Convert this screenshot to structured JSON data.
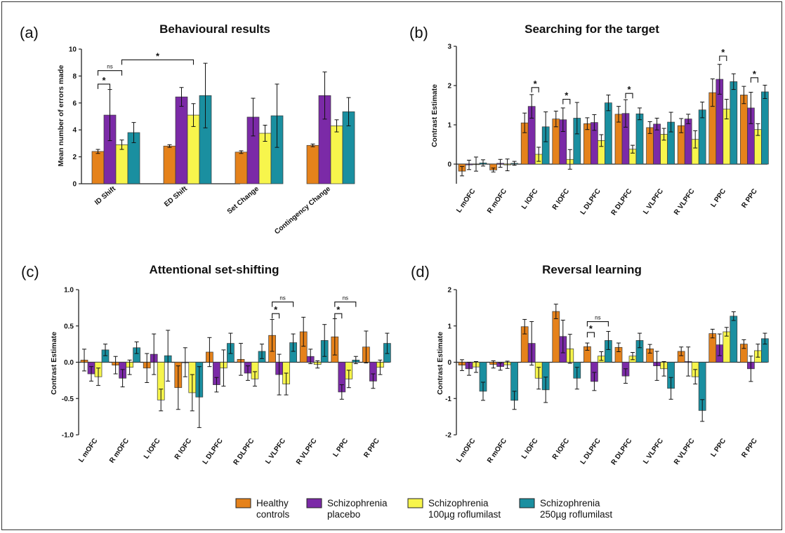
{
  "legend": {
    "items": [
      {
        "line1": "Healthy",
        "line2": "controls",
        "color": "#E5821B"
      },
      {
        "line1": "Schizophrenia",
        "line2": "placebo",
        "color": "#7B2AA7"
      },
      {
        "line1": "Schizophrenia",
        "line2": "100µg roflumilast",
        "color": "#F7F54C"
      },
      {
        "line1": "Schizophrenia",
        "line2": "250µg roflumilast",
        "color": "#1A8FA0"
      }
    ]
  },
  "chart_data": [
    {
      "panel": "(a)",
      "type": "bar",
      "title": "Behavioural results",
      "ylabel": "Mean number of errors made",
      "ylim": [
        0,
        10
      ],
      "yticks": [
        "0",
        "2",
        "4",
        "6",
        "8",
        "10"
      ],
      "categories": [
        "ID Shift",
        "ED Shift",
        "Set Change",
        "Contingency Change"
      ],
      "series": [
        {
          "name": "Healthy controls",
          "values": [
            2.4,
            2.8,
            2.35,
            2.85
          ],
          "err": [
            0.15,
            0.1,
            0.1,
            0.1
          ]
        },
        {
          "name": "Schizophrenia placebo",
          "values": [
            5.1,
            6.45,
            4.95,
            6.55
          ],
          "err": [
            1.9,
            0.7,
            1.4,
            1.75
          ]
        },
        {
          "name": "Schizophrenia 100µg roflumilast",
          "values": [
            2.9,
            5.1,
            3.75,
            4.3
          ],
          "err": [
            0.35,
            0.85,
            0.6,
            0.45
          ]
        },
        {
          "name": "Schizophrenia 250µg roflumilast",
          "values": [
            3.8,
            6.55,
            5.05,
            5.35
          ],
          "err": [
            0.75,
            2.4,
            2.35,
            1.05
          ]
        }
      ],
      "annotations": [
        {
          "label": "*",
          "from": [
            0,
            0
          ],
          "to": [
            0,
            1
          ],
          "level": 7.4
        },
        {
          "label": "ns",
          "from": [
            0,
            0
          ],
          "to": [
            0,
            2
          ],
          "level": 8.4
        },
        {
          "label": "*",
          "from": [
            0,
            2
          ],
          "to": [
            1,
            2
          ],
          "level": 9.2
        }
      ]
    },
    {
      "panel": "(b)",
      "type": "bar",
      "title": "Searching for the target",
      "ylabel": "Contrast Estimate",
      "ylim": [
        -0.5,
        3
      ],
      "yticks": [
        "0",
        "1",
        "2",
        "3"
      ],
      "categories": [
        "L mOFC",
        "R mOFC",
        "L lOFC",
        "R lOFC",
        "L DLPFC",
        "R DLPFC",
        "L VLPFC",
        "R VLPFC",
        "L PPC",
        "R PPC"
      ],
      "series": [
        {
          "name": "Healthy controls",
          "values": [
            -0.18,
            -0.15,
            1.05,
            1.15,
            1.03,
            1.27,
            0.93,
            0.98,
            1.82,
            1.76
          ],
          "err": [
            0.12,
            0.05,
            0.25,
            0.2,
            0.15,
            0.2,
            0.15,
            0.18,
            0.35,
            0.22
          ]
        },
        {
          "name": "Schizophrenia placebo",
          "values": [
            -0.02,
            0.02,
            1.47,
            1.13,
            1.06,
            1.29,
            1.02,
            1.15,
            2.16,
            1.43
          ],
          "err": [
            0.12,
            0.1,
            0.3,
            0.3,
            0.2,
            0.35,
            0.15,
            0.12,
            0.38,
            0.4
          ]
        },
        {
          "name": "Schizophrenia 100µg roflumilast",
          "values": [
            0.0,
            -0.02,
            0.25,
            0.12,
            0.6,
            0.38,
            0.76,
            0.63,
            1.4,
            0.88
          ],
          "err": [
            0.18,
            0.15,
            0.18,
            0.25,
            0.15,
            0.1,
            0.15,
            0.22,
            0.25,
            0.15
          ]
        },
        {
          "name": "Schizophrenia 250µg roflumilast",
          "values": [
            0.03,
            0.02,
            0.95,
            1.17,
            1.56,
            1.28,
            1.07,
            1.38,
            2.1,
            1.84
          ],
          "err": [
            0.08,
            0.05,
            0.38,
            0.4,
            0.2,
            0.15,
            0.25,
            0.2,
            0.2,
            0.17
          ]
        }
      ],
      "annotations": [
        {
          "label": "*",
          "from": [
            2,
            1
          ],
          "to": [
            2,
            2
          ],
          "level": 1.95
        },
        {
          "label": "*",
          "from": [
            3,
            1
          ],
          "to": [
            3,
            2
          ],
          "level": 1.65
        },
        {
          "label": "*",
          "from": [
            5,
            1
          ],
          "to": [
            5,
            2
          ],
          "level": 1.8
        },
        {
          "label": "*",
          "from": [
            8,
            1
          ],
          "to": [
            8,
            2
          ],
          "level": 2.75
        },
        {
          "label": "*",
          "from": [
            9,
            1
          ],
          "to": [
            9,
            2
          ],
          "level": 2.2
        }
      ]
    },
    {
      "panel": "(c)",
      "type": "bar",
      "title": "Attentional set-shifting",
      "ylabel": "Contrast Estimate",
      "ylim": [
        -1.0,
        1.0
      ],
      "yticks": [
        "-1.0",
        "-0.5",
        "0.0",
        "0.5",
        "1.0"
      ],
      "categories": [
        "L mOFC",
        "R mOFC",
        "L lOFC",
        "R lOFC",
        "L DLPFC",
        "R DLPFC",
        "L VLPFC",
        "R VLPFC",
        "L PPC",
        "R PPC"
      ],
      "series": [
        {
          "name": "Healthy controls",
          "values": [
            0.03,
            -0.04,
            -0.08,
            -0.35,
            0.14,
            0.04,
            0.37,
            0.42,
            0.35,
            0.21
          ],
          "err": [
            0.15,
            0.12,
            0.2,
            0.3,
            0.2,
            0.22,
            0.22,
            0.2,
            0.25,
            0.22
          ]
        },
        {
          "name": "Schizophrenia placebo",
          "values": [
            -0.16,
            -0.22,
            0.11,
            0.0,
            -0.31,
            -0.15,
            -0.17,
            0.08,
            -0.41,
            -0.26
          ],
          "err": [
            0.1,
            0.12,
            0.28,
            0.2,
            0.1,
            0.1,
            0.28,
            0.1,
            0.1,
            0.1
          ]
        },
        {
          "name": "Schizophrenia 100µg roflumilast",
          "values": [
            -0.2,
            -0.07,
            -0.52,
            -0.42,
            -0.08,
            -0.23,
            -0.3,
            -0.03,
            -0.23,
            -0.07
          ],
          "err": [
            0.12,
            0.1,
            0.15,
            0.25,
            0.25,
            0.1,
            0.15,
            0.05,
            0.12,
            0.1
          ]
        },
        {
          "name": "Schizophrenia 250µg roflumilast",
          "values": [
            0.17,
            0.2,
            0.09,
            -0.48,
            0.26,
            0.15,
            0.27,
            0.3,
            0.03,
            0.26
          ],
          "err": [
            0.08,
            0.08,
            0.35,
            0.42,
            0.14,
            0.1,
            0.12,
            0.22,
            0.05,
            0.14
          ]
        }
      ],
      "annotations": [
        {
          "label": "*",
          "from": [
            6,
            0
          ],
          "to": [
            6,
            1
          ],
          "level": 0.67
        },
        {
          "label": "ns",
          "from": [
            6,
            0
          ],
          "to": [
            6,
            3
          ],
          "level": 0.83
        },
        {
          "label": "*",
          "from": [
            8,
            0
          ],
          "to": [
            8,
            1
          ],
          "level": 0.67
        },
        {
          "label": "ns",
          "from": [
            8,
            0
          ],
          "to": [
            8,
            3
          ],
          "level": 0.83
        }
      ]
    },
    {
      "panel": "(d)",
      "type": "bar",
      "title": "Reversal learning",
      "ylabel": "Contrast Estimate",
      "ylim": [
        -2,
        2
      ],
      "yticks": [
        "-2",
        "-1",
        "0",
        "1",
        "2"
      ],
      "categories": [
        "L mOFC",
        "R mOFC",
        "L lOFC",
        "R lOFC",
        "L DLPFC",
        "R DLPFC",
        "L VLPFC",
        "R VLPFC",
        "L PPC",
        "R PPC"
      ],
      "series": [
        {
          "name": "Healthy controls",
          "values": [
            -0.08,
            -0.06,
            0.98,
            1.4,
            0.43,
            0.41,
            0.37,
            0.3,
            0.79,
            0.5
          ],
          "err": [
            0.15,
            0.1,
            0.2,
            0.2,
            0.1,
            0.12,
            0.12,
            0.12,
            0.12,
            0.12
          ]
        },
        {
          "name": "Schizophrenia placebo",
          "values": [
            -0.18,
            -0.12,
            0.52,
            0.71,
            -0.53,
            -0.38,
            -0.1,
            0.02,
            0.48,
            -0.18
          ],
          "err": [
            0.18,
            0.1,
            0.6,
            0.45,
            0.25,
            0.2,
            0.4,
            0.4,
            0.3,
            0.35
          ]
        },
        {
          "name": "Schizophrenia 100µg roflumilast",
          "values": [
            -0.13,
            -0.07,
            -0.44,
            0.37,
            0.17,
            0.17,
            -0.18,
            -0.4,
            0.84,
            0.32
          ],
          "err": [
            0.15,
            0.1,
            0.3,
            0.4,
            0.12,
            0.1,
            0.2,
            0.2,
            0.12,
            0.18
          ]
        },
        {
          "name": "Schizophrenia 250µg roflumilast",
          "values": [
            -0.8,
            -1.05,
            -0.76,
            -0.44,
            0.6,
            0.6,
            -0.72,
            -1.33,
            1.27,
            0.65
          ],
          "err": [
            0.25,
            0.25,
            0.35,
            0.3,
            0.25,
            0.2,
            0.3,
            0.3,
            0.12,
            0.15
          ]
        }
      ],
      "annotations": [
        {
          "label": "*",
          "from": [
            4,
            0
          ],
          "to": [
            4,
            1
          ],
          "level": 0.82
        },
        {
          "label": "ns",
          "from": [
            4,
            0
          ],
          "to": [
            4,
            3
          ],
          "level": 1.12
        }
      ]
    }
  ]
}
